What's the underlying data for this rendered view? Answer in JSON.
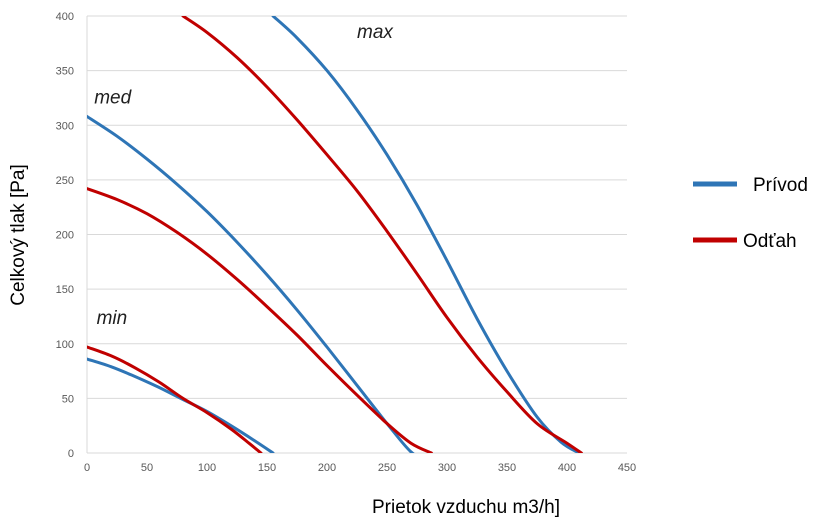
{
  "chart_data": {
    "type": "line",
    "title": "",
    "xlabel": "Prietok vzduchu m3/h]",
    "ylabel": "Celkový tlak [Pa]",
    "xlim": [
      0,
      450
    ],
    "ylim": [
      0,
      400
    ],
    "xticks": [
      0,
      50,
      100,
      150,
      200,
      250,
      300,
      350,
      400,
      450
    ],
    "yticks": [
      0,
      50,
      100,
      150,
      200,
      250,
      300,
      350,
      400
    ],
    "grid": "horizontal",
    "legend": {
      "position": "right",
      "entries": [
        "Prívod",
        "Odťah"
      ]
    },
    "colors": {
      "Prívod": "#2e75b6",
      "Odťah": "#c00000"
    },
    "annotations": [
      {
        "text": "min",
        "x": 8,
        "y": 118
      },
      {
        "text": "med",
        "x": 6,
        "y": 320
      },
      {
        "text": "max",
        "x": 225,
        "y": 380
      }
    ],
    "series": [
      {
        "name": "Prívod",
        "level": "min",
        "points": [
          [
            0,
            86
          ],
          [
            20,
            79
          ],
          [
            40,
            70
          ],
          [
            60,
            60
          ],
          [
            80,
            49
          ],
          [
            100,
            38
          ],
          [
            120,
            25
          ],
          [
            140,
            11
          ],
          [
            155,
            0
          ]
        ]
      },
      {
        "name": "Odťah",
        "level": "min",
        "points": [
          [
            0,
            97
          ],
          [
            20,
            89
          ],
          [
            40,
            78
          ],
          [
            60,
            65
          ],
          [
            80,
            50
          ],
          [
            100,
            37
          ],
          [
            120,
            22
          ],
          [
            135,
            9
          ],
          [
            145,
            0
          ]
        ]
      },
      {
        "name": "Prívod",
        "level": "med",
        "points": [
          [
            0,
            308
          ],
          [
            25,
            290
          ],
          [
            50,
            269
          ],
          [
            75,
            246
          ],
          [
            100,
            221
          ],
          [
            125,
            193
          ],
          [
            150,
            163
          ],
          [
            175,
            131
          ],
          [
            200,
            97
          ],
          [
            225,
            62
          ],
          [
            250,
            27
          ],
          [
            270,
            1
          ],
          [
            285,
            -8
          ]
        ]
      },
      {
        "name": "Odťah",
        "level": "med",
        "points": [
          [
            0,
            242
          ],
          [
            25,
            232
          ],
          [
            50,
            219
          ],
          [
            75,
            202
          ],
          [
            100,
            182
          ],
          [
            125,
            159
          ],
          [
            150,
            134
          ],
          [
            175,
            108
          ],
          [
            200,
            80
          ],
          [
            225,
            53
          ],
          [
            250,
            27
          ],
          [
            270,
            9
          ],
          [
            287,
            0
          ]
        ]
      },
      {
        "name": "Prívod",
        "level": "max",
        "points": [
          [
            155,
            400
          ],
          [
            175,
            380
          ],
          [
            200,
            350
          ],
          [
            225,
            314
          ],
          [
            250,
            273
          ],
          [
            275,
            227
          ],
          [
            300,
            176
          ],
          [
            325,
            123
          ],
          [
            350,
            75
          ],
          [
            375,
            33
          ],
          [
            395,
            10
          ],
          [
            410,
            0
          ]
        ]
      },
      {
        "name": "Odťah",
        "level": "max",
        "points": [
          [
            80,
            400
          ],
          [
            100,
            385
          ],
          [
            125,
            362
          ],
          [
            150,
            335
          ],
          [
            175,
            305
          ],
          [
            200,
            273
          ],
          [
            225,
            240
          ],
          [
            250,
            203
          ],
          [
            275,
            164
          ],
          [
            300,
            124
          ],
          [
            325,
            88
          ],
          [
            350,
            56
          ],
          [
            375,
            27
          ],
          [
            400,
            9
          ],
          [
            412,
            0
          ]
        ]
      }
    ]
  }
}
